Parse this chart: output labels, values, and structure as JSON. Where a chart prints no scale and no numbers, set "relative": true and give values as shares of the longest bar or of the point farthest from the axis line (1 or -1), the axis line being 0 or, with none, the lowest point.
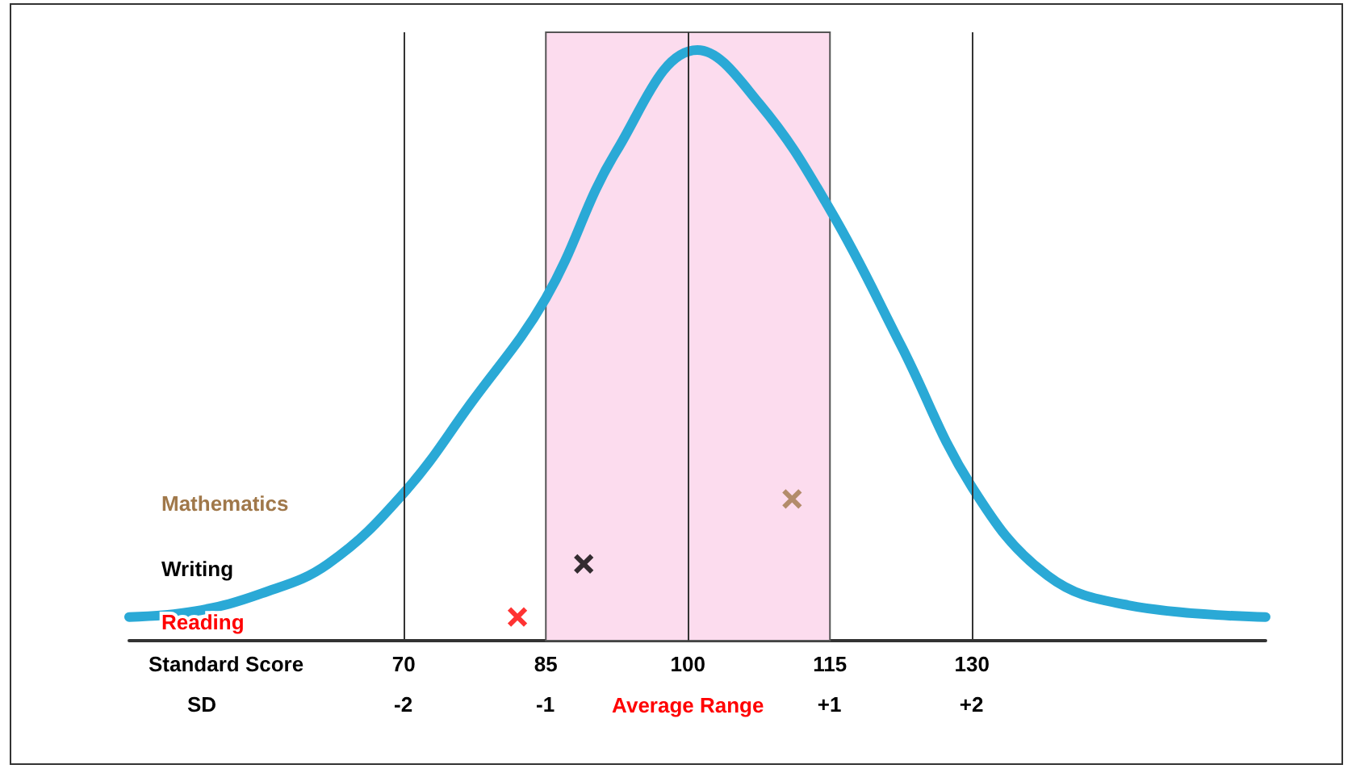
{
  "chart_data": {
    "type": "line",
    "relative": true,
    "xlabel": "Standard Score",
    "x2label": "SD",
    "xlim": [
      41,
      161
    ],
    "xticks": [
      70,
      85,
      100,
      115,
      130
    ],
    "x2lim": [
      -3.93,
      4.07
    ],
    "x2ticks": [
      -2,
      -1,
      {
        "value": 1,
        "label": "+1"
      },
      {
        "value": 2,
        "label": "+2"
      }
    ],
    "series": [
      {
        "color": "#2aa9d6",
        "x": [
          41,
          48,
          55,
          62,
          70,
          77,
          85,
          92.5,
          101,
          107.5,
          115,
          122.5,
          130,
          138,
          146.5,
          161
        ],
        "values": [
          0.04,
          0.05,
          0.08,
          0.13,
          0.25,
          0.4,
          0.58,
          0.83,
          1.0,
          0.91,
          0.73,
          0.5,
          0.26,
          0.11,
          0.06,
          0.04
        ]
      },
      {
        "type": "scatter",
        "name": "Mathematics",
        "color": "#a0784a",
        "marker": "cross",
        "x": [
          111
        ],
        "values": [
          0.24
        ]
      },
      {
        "type": "scatter",
        "name": "Writing",
        "color": "#000000",
        "marker": "cross",
        "x": [
          89
        ],
        "values": [
          0.13
        ]
      },
      {
        "type": "scatter",
        "name": "Reading",
        "color": "#ff0000",
        "marker": "cross",
        "x": [
          82
        ],
        "values": [
          0.04
        ]
      }
    ],
    "bands": [
      {
        "axis": "x",
        "from": 85,
        "to": 115,
        "label": "Average Range",
        "color": "#fcdcee"
      }
    ],
    "ref_lines": [
      {
        "axis": "x",
        "value": 70
      },
      {
        "axis": "x",
        "value": 100
      },
      {
        "axis": "x",
        "value": 130
      }
    ],
    "tick_labels": "x",
    "grid": false,
    "legend": false
  }
}
